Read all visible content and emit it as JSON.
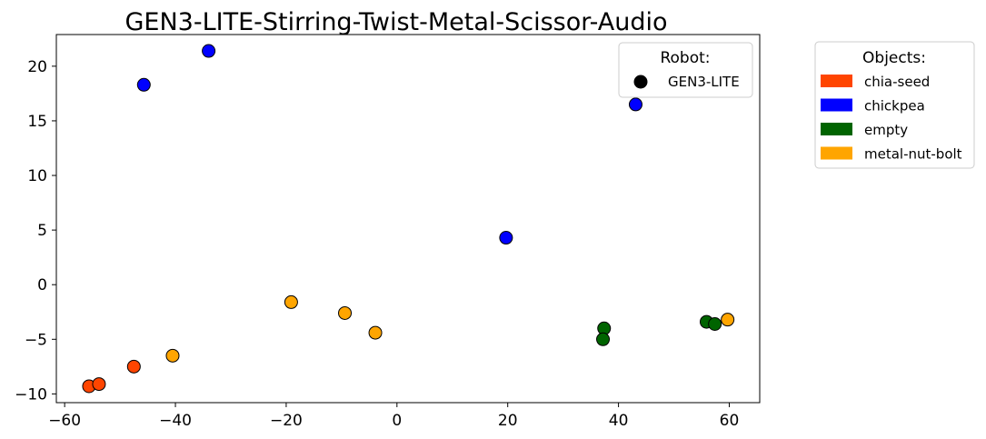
{
  "chart_data": {
    "type": "scatter",
    "title": "GEN3-LITE-Stirring-Twist-Metal-Scissor-Audio",
    "xlabel": "",
    "ylabel": "",
    "xlim": [
      -61.5,
      65.5
    ],
    "ylim": [
      -10.8,
      22.9
    ],
    "xticks": [
      -60,
      -40,
      -20,
      0,
      20,
      40,
      60
    ],
    "yticks": [
      -10,
      -5,
      0,
      5,
      10,
      15,
      20
    ],
    "xtick_labels": [
      "−60",
      "−40",
      "−20",
      "0",
      "20",
      "40",
      "60"
    ],
    "ytick_labels": [
      "−10",
      "−5",
      "0",
      "5",
      "10",
      "15",
      "20"
    ],
    "grid": false,
    "series": [
      {
        "name": "chia-seed",
        "color": "#FF4500",
        "x": [
          -55.6,
          -53.8,
          -47.5
        ],
        "y": [
          -9.3,
          -9.1,
          -7.5
        ]
      },
      {
        "name": "chickpea",
        "color": "#0000FF",
        "x": [
          -45.7,
          -34.0,
          19.7,
          43.1
        ],
        "y": [
          18.3,
          21.4,
          4.3,
          16.5
        ]
      },
      {
        "name": "empty",
        "color": "#006400",
        "x": [
          37.4,
          37.2,
          55.9,
          57.4
        ],
        "y": [
          -4.0,
          -5.0,
          -3.4,
          -3.6
        ]
      },
      {
        "name": "metal-nut-bolt",
        "color": "#FFA500",
        "x": [
          -40.5,
          -19.1,
          -9.4,
          -3.9,
          59.7
        ],
        "y": [
          -6.5,
          -1.6,
          -2.6,
          -4.4,
          -3.2
        ]
      }
    ],
    "legends": [
      {
        "title": "Robot:",
        "placement": "top-right",
        "entries": [
          {
            "label": "GEN3-LITE",
            "marker": "circle",
            "color": "#000000"
          }
        ]
      },
      {
        "title": "Objects:",
        "placement": "outside-right",
        "entries": [
          {
            "label": "chia-seed",
            "color": "#FF4500"
          },
          {
            "label": "chickpea",
            "color": "#0000FF"
          },
          {
            "label": "empty",
            "color": "#006400"
          },
          {
            "label": "metal-nut-bolt",
            "color": "#FFA500"
          }
        ]
      }
    ]
  }
}
